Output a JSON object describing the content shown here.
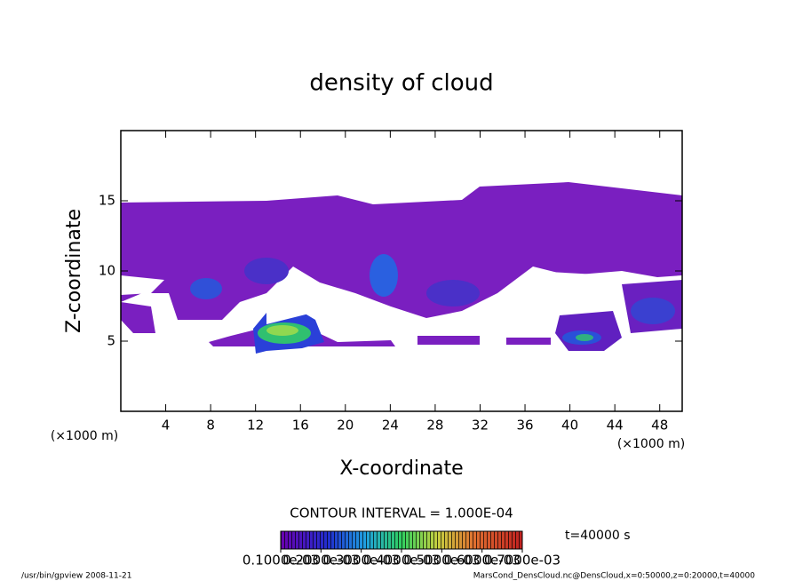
{
  "chart_data": {
    "type": "contour",
    "title": "density of cloud",
    "xlabel": "X-coordinate",
    "ylabel": "Z-coordinate",
    "xunit": "(×1000 m)",
    "yunit": "(×1000 m)",
    "xlim": [
      0,
      50
    ],
    "xticks": [
      4,
      8,
      12,
      16,
      20,
      24,
      28,
      32,
      36,
      40,
      44,
      48
    ],
    "ylim": [
      0,
      20
    ],
    "yticks": [
      5,
      10,
      15
    ],
    "contour_interval": "CONTOUR INTERVAL = 1.000E-04",
    "time": "t=40000 s",
    "colorbar": {
      "lim": [
        0.0001,
        0.0007
      ],
      "ticks": [
        {
          "value": 0.0001,
          "label": "0.1000e-03"
        },
        {
          "value": 0.0002,
          "label": "0.2000e-03"
        },
        {
          "value": 0.0003,
          "label": "0.3000e-03"
        },
        {
          "value": 0.0004,
          "label": "0.4000e-03"
        },
        {
          "value": 0.0005,
          "label": "0.5000e-03"
        },
        {
          "value": 0.0006,
          "label": "0.6000e-03"
        },
        {
          "value": 0.0007,
          "label": "0.7000e-03"
        }
      ]
    },
    "footer_left": "/usr/bin/gpview  2008-11-21",
    "footer_right": "MarsCond_DensCloud.nc@DensCloud,x=0:50000,z=0:20000,t=40000"
  }
}
